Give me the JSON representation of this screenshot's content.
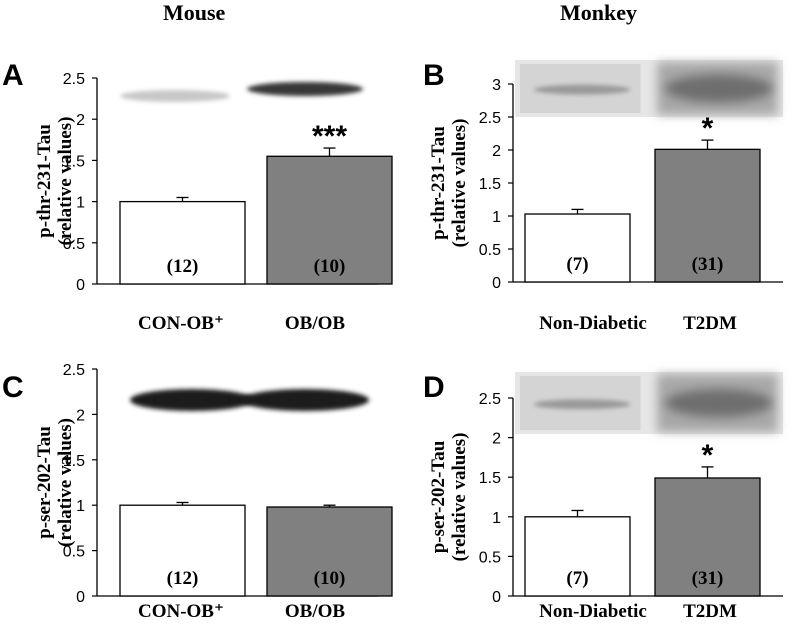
{
  "headers": {
    "left": "Mouse",
    "right": "Monkey"
  },
  "chart_data": [
    {
      "panel": "A",
      "type": "bar",
      "ylabel_lines": [
        "p-thr-231-Tau",
        "(relative values)"
      ],
      "ylim": [
        0,
        2.5
      ],
      "yticks": [
        0,
        0.5,
        1,
        1.5,
        2,
        2.5
      ],
      "categories": [
        "CON-OB⁺",
        "OB/OB"
      ],
      "values": [
        1.0,
        1.55
      ],
      "errors": [
        0.05,
        0.1
      ],
      "n_labels": [
        "(12)",
        "(10)"
      ],
      "significance": [
        "",
        "***"
      ],
      "bar_fills": [
        "#ffffff",
        "#808080"
      ],
      "blot": "western blot band image"
    },
    {
      "panel": "B",
      "type": "bar",
      "ylabel_lines": [
        "p-thr-231-Tau",
        "(relative values)"
      ],
      "ylim": [
        0,
        3
      ],
      "yticks": [
        0,
        0.5,
        1,
        1.5,
        2,
        2.5,
        3
      ],
      "categories": [
        "Non-Diabetic",
        "T2DM"
      ],
      "values": [
        1.03,
        2.01
      ],
      "errors": [
        0.07,
        0.14
      ],
      "n_labels": [
        "(7)",
        "(31)"
      ],
      "significance": [
        "",
        "*"
      ],
      "bar_fills": [
        "#ffffff",
        "#808080"
      ],
      "blot": "western blot band image"
    },
    {
      "panel": "C",
      "type": "bar",
      "ylabel_lines": [
        "p-ser-202-Tau",
        "(relative values)"
      ],
      "ylim": [
        0,
        2.5
      ],
      "yticks": [
        0,
        0.5,
        1,
        1.5,
        2,
        2.5
      ],
      "categories": [
        "CON-OB⁺",
        "OB/OB"
      ],
      "values": [
        1.0,
        0.98
      ],
      "errors": [
        0.03,
        0.02
      ],
      "n_labels": [
        "(12)",
        "(10)"
      ],
      "significance": [
        "",
        ""
      ],
      "bar_fills": [
        "#ffffff",
        "#808080"
      ],
      "blot": "western blot band image"
    },
    {
      "panel": "D",
      "type": "bar",
      "ylabel_lines": [
        "p-ser-202-Tau",
        "(relative values)"
      ],
      "ylim": [
        0,
        2.5
      ],
      "yticks": [
        0,
        0.5,
        1,
        1.5,
        2,
        2.5
      ],
      "categories": [
        "Non-Diabetic",
        "T2DM"
      ],
      "values": [
        1.0,
        1.49
      ],
      "errors": [
        0.08,
        0.14
      ],
      "n_labels": [
        "(7)",
        "(31)"
      ],
      "significance": [
        "",
        "*"
      ],
      "bar_fills": [
        "#ffffff",
        "#808080"
      ],
      "blot": "western blot band image"
    }
  ]
}
